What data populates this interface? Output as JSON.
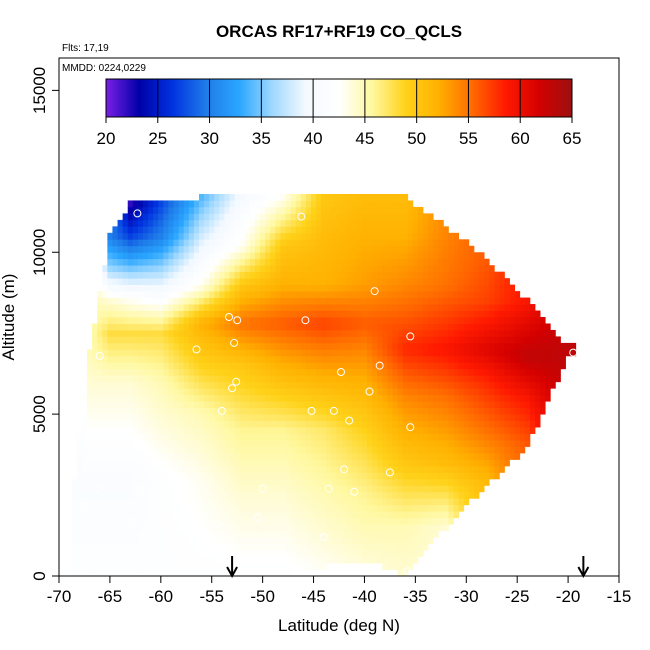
{
  "chart_data": {
    "type": "heatmap",
    "title": "ORCAS RF17+RF19 CO_QCLS",
    "annotations": [
      "Flts: 17,19",
      "MMDD: 0224,0229"
    ],
    "xlabel": "Latitude (deg N)",
    "ylabel": "Altitude (m)",
    "xlim": [
      -70,
      -15
    ],
    "ylim": [
      0,
      16000
    ],
    "xticks": [
      "-70",
      "-65",
      "-60",
      "-55",
      "-50",
      "-45",
      "-40",
      "-35",
      "-30",
      "-25",
      "-20",
      "-15"
    ],
    "yticks": [
      "0",
      "5000",
      "10000",
      "15000"
    ],
    "colorbar": {
      "ticks": [
        "20",
        "25",
        "30",
        "35",
        "40",
        "45",
        "50",
        "55",
        "60",
        "65"
      ],
      "range": [
        20,
        65
      ],
      "placement": "top",
      "palette": [
        "#7a1fe6",
        "#0000a8",
        "#0033e0",
        "#1f7be8",
        "#2aa6ff",
        "#9fd8ff",
        "#f4f9ff",
        "#ffffff",
        "#fff8a0",
        "#ffd21a",
        "#ffb000",
        "#ff6a00",
        "#ff1a00",
        "#d40000",
        "#9c1010"
      ]
    },
    "grid": false,
    "markers": {
      "arrows_at_x": [
        -53,
        -18.5
      ],
      "sample_points": [
        [
          -62.3,
          11200
        ],
        [
          -46.2,
          11100
        ],
        [
          -39,
          8800
        ],
        [
          -53.3,
          8000
        ],
        [
          -52.5,
          7900
        ],
        [
          -45.8,
          7900
        ],
        [
          -35.5,
          7400
        ],
        [
          -52.8,
          7200
        ],
        [
          -56.5,
          7000
        ],
        [
          -66,
          6800
        ],
        [
          -19.5,
          6900
        ],
        [
          -38.5,
          6500
        ],
        [
          -42.3,
          6300
        ],
        [
          -53,
          5800
        ],
        [
          -52.6,
          6000
        ],
        [
          -39.5,
          5700
        ],
        [
          -54,
          5100
        ],
        [
          -45.2,
          5100
        ],
        [
          -43,
          5100
        ],
        [
          -41.5,
          4800
        ],
        [
          -35.5,
          4600
        ],
        [
          -42,
          3300
        ],
        [
          -37.5,
          3200
        ],
        [
          -66.2,
          2700
        ],
        [
          -62,
          2700
        ],
        [
          -57.3,
          2700
        ],
        [
          -50,
          2700
        ],
        [
          -43.5,
          2700
        ],
        [
          -41,
          2600
        ],
        [
          -67.5,
          2200
        ],
        [
          -63,
          1700
        ],
        [
          -58.5,
          1700
        ],
        [
          -54.5,
          1600
        ],
        [
          -50.5,
          1800
        ],
        [
          -67.3,
          1500
        ],
        [
          -44,
          1200
        ],
        [
          -68,
          200
        ],
        [
          -66.2,
          200
        ],
        [
          -61.8,
          150
        ],
        [
          -57.8,
          200
        ],
        [
          -50.2,
          300
        ],
        [
          -43.5,
          150
        ],
        [
          -40.8,
          150
        ],
        [
          -35.8,
          150
        ]
      ]
    },
    "field": {
      "columns": [
        {
          "lat": -68.5,
          "bottom": 0,
          "top": 3000,
          "alt": [
            0,
            3000
          ],
          "val": [
            42,
            41
          ]
        },
        {
          "lat": -67,
          "bottom": 0,
          "top": 7000,
          "alt": [
            0,
            3000,
            5000,
            7000
          ],
          "val": [
            42,
            41,
            43,
            45
          ]
        },
        {
          "lat": -65,
          "bottom": 0,
          "top": 10500,
          "alt": [
            0,
            3000,
            6000,
            7500,
            8500,
            9500,
            10500
          ],
          "val": [
            42,
            41,
            44,
            48,
            44,
            36,
            30
          ]
        },
        {
          "lat": -63,
          "bottom": 0,
          "top": 11500,
          "alt": [
            0,
            3000,
            6000,
            7500,
            8500,
            9500,
            10500,
            11500
          ],
          "val": [
            42,
            41,
            44,
            48,
            43,
            35,
            27,
            22
          ]
        },
        {
          "lat": -60,
          "bottom": 0,
          "top": 11600,
          "alt": [
            0,
            3000,
            6000,
            7500,
            8500,
            9500,
            10500,
            11600
          ],
          "val": [
            42,
            42,
            45,
            48,
            42,
            36,
            30,
            27
          ]
        },
        {
          "lat": -56,
          "bottom": 0,
          "top": 11700,
          "alt": [
            0,
            3000,
            5000,
            6500,
            7800,
            9000,
            10500,
            11700
          ],
          "val": [
            42,
            43,
            45,
            49,
            52,
            43,
            38,
            34
          ]
        },
        {
          "lat": -52,
          "bottom": 0,
          "top": 11700,
          "alt": [
            0,
            2500,
            4500,
            6500,
            7800,
            9000,
            10200,
            11700
          ],
          "val": [
            42,
            44,
            46,
            50,
            55,
            50,
            43,
            40
          ]
        },
        {
          "lat": -48,
          "bottom": 0,
          "top": 11700,
          "alt": [
            0,
            2500,
            4500,
            6500,
            7800,
            9000,
            10200,
            11700
          ],
          "val": [
            42,
            44,
            46,
            52,
            56,
            52,
            50,
            43
          ]
        },
        {
          "lat": -44,
          "bottom": 300,
          "top": 11700,
          "alt": [
            300,
            2500,
            4500,
            6500,
            7800,
            9000,
            10500,
            11700
          ],
          "val": [
            43,
            45,
            47,
            53,
            57,
            52,
            51,
            50
          ]
        },
        {
          "lat": -40,
          "bottom": 500,
          "top": 11700,
          "alt": [
            500,
            2500,
            4500,
            6500,
            7800,
            9000,
            10500,
            11700
          ],
          "val": [
            44,
            46,
            49,
            53,
            56,
            53,
            52,
            51
          ]
        },
        {
          "lat": -36,
          "bottom": 0,
          "top": 11700,
          "alt": [
            0,
            1500,
            3500,
            5500,
            7000,
            9000,
            10500,
            11700
          ],
          "val": [
            44,
            45,
            50,
            54,
            58,
            54,
            52,
            51
          ]
        },
        {
          "lat": -32,
          "bottom": 1500,
          "top": 10800,
          "alt": [
            1500,
            3500,
            5500,
            7000,
            9000,
            10800
          ],
          "val": [
            44,
            51,
            55,
            59,
            55,
            54
          ]
        },
        {
          "lat": -28,
          "bottom": 2800,
          "top": 9800,
          "alt": [
            2800,
            4500,
            6000,
            7000,
            8500,
            9800
          ],
          "val": [
            51,
            55,
            58,
            61,
            57,
            56
          ]
        },
        {
          "lat": -24,
          "bottom": 4000,
          "top": 8500,
          "alt": [
            4000,
            5500,
            6800,
            8500
          ],
          "val": [
            56,
            59,
            63,
            59
          ]
        },
        {
          "lat": -20,
          "bottom": 6800,
          "top": 7100,
          "alt": [
            6800,
            7100
          ],
          "val": [
            63,
            63
          ]
        }
      ]
    }
  }
}
